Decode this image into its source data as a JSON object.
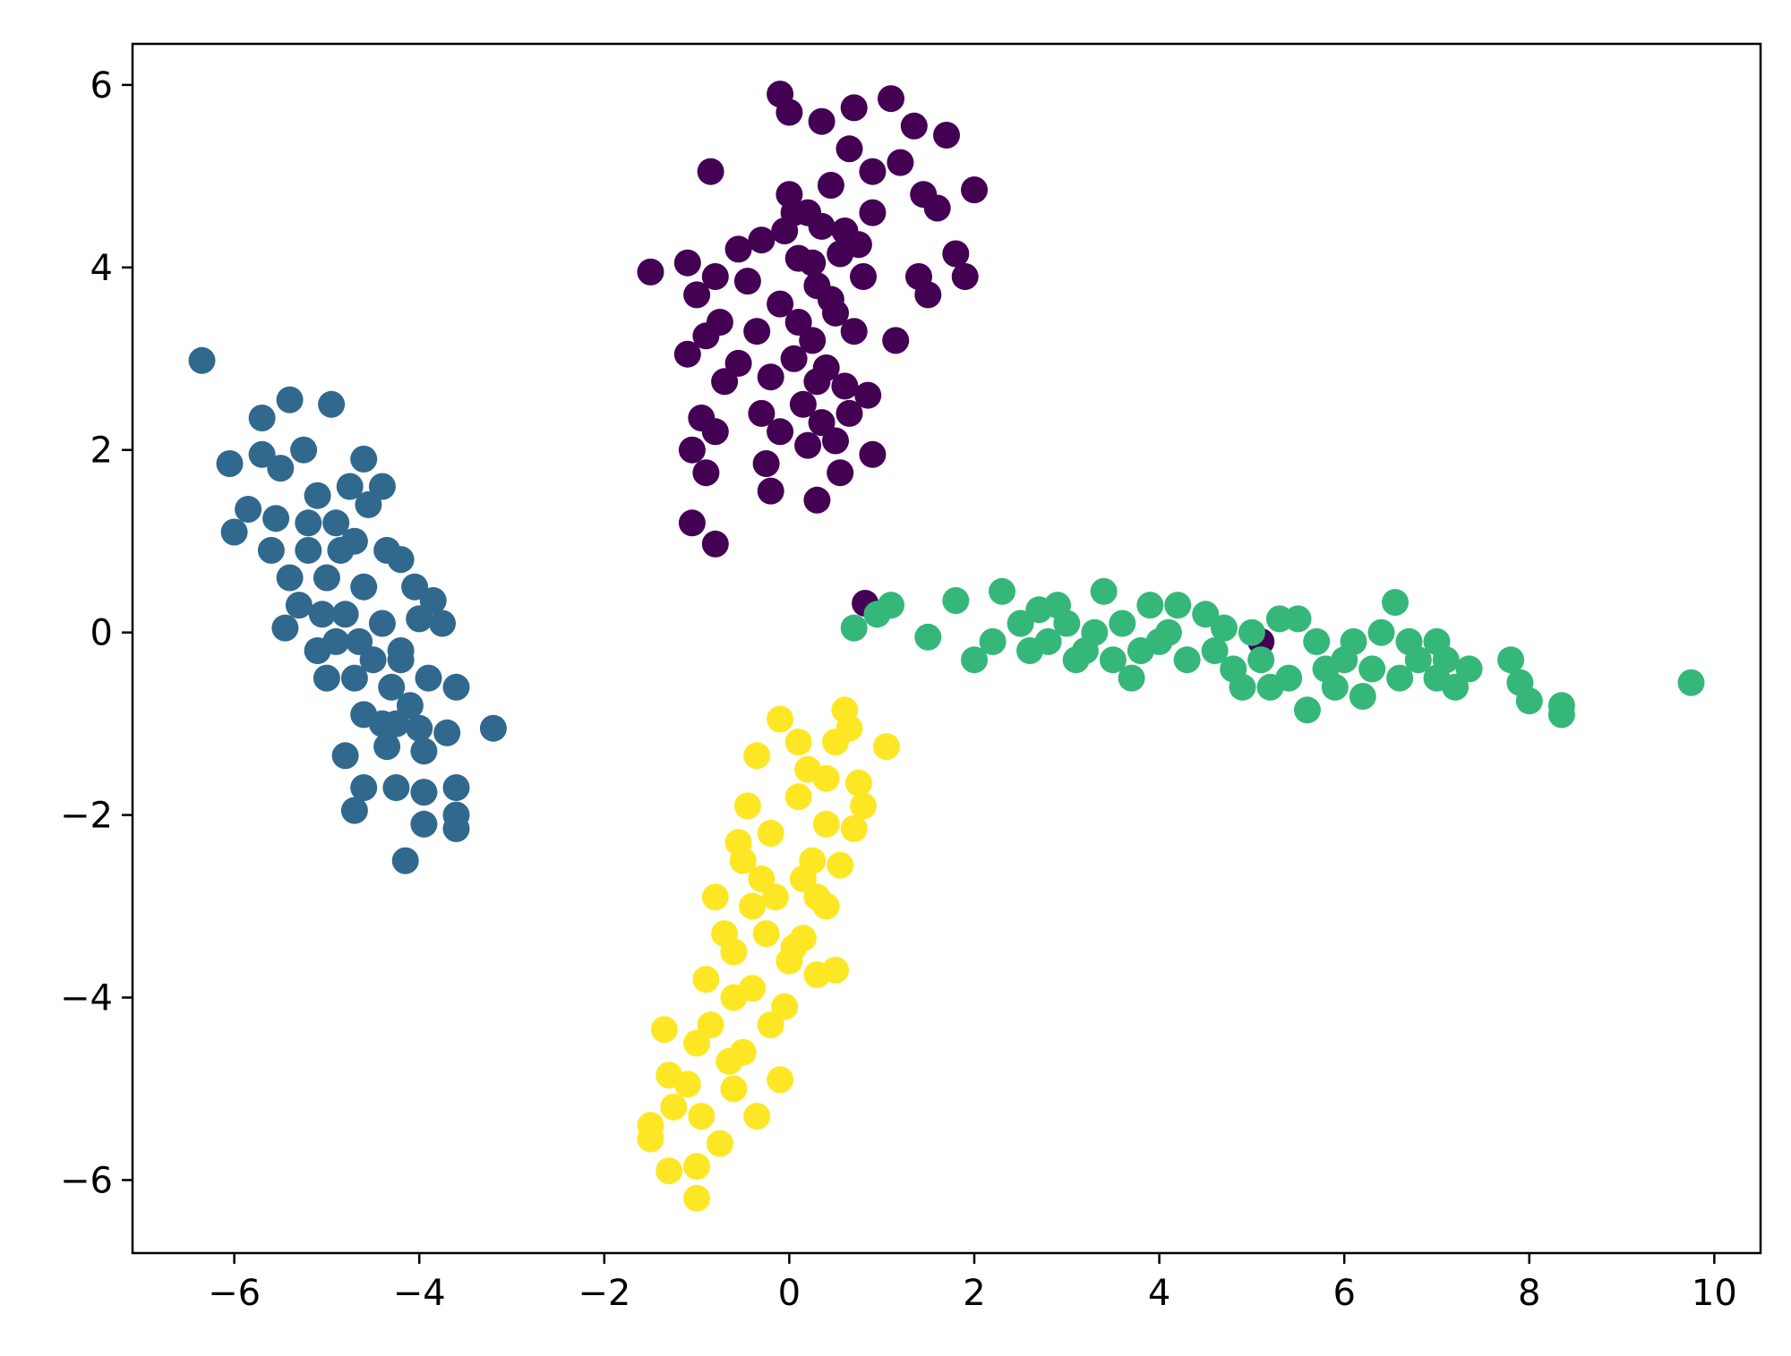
{
  "chart_data": {
    "type": "scatter",
    "title": "",
    "xlabel": "",
    "ylabel": "",
    "xlim": [
      -7.1,
      10.5
    ],
    "ylim": [
      -6.8,
      6.45
    ],
    "xticks": [
      -6,
      -4,
      -2,
      0,
      2,
      4,
      6,
      8,
      10
    ],
    "xtick_labels": [
      "−6",
      "−4",
      "−2",
      "0",
      "2",
      "4",
      "6",
      "8",
      "10"
    ],
    "yticks": [
      -6,
      -4,
      -2,
      0,
      2,
      4,
      6
    ],
    "ytick_labels": [
      "−6",
      "−4",
      "−2",
      "0",
      "2",
      "4",
      "6"
    ],
    "grid": false,
    "legend": "none",
    "series": [
      {
        "color": "#440154",
        "points": [
          [
            -0.1,
            5.9
          ],
          [
            0.0,
            5.7
          ],
          [
            0.35,
            5.6
          ],
          [
            0.7,
            5.75
          ],
          [
            1.1,
            5.85
          ],
          [
            1.35,
            5.55
          ],
          [
            1.7,
            5.45
          ],
          [
            -0.85,
            5.05
          ],
          [
            0.65,
            5.3
          ],
          [
            0.9,
            5.05
          ],
          [
            1.2,
            5.15
          ],
          [
            2.0,
            4.85
          ],
          [
            1.45,
            4.8
          ],
          [
            1.6,
            4.65
          ],
          [
            -1.5,
            3.95
          ],
          [
            -1.1,
            4.05
          ],
          [
            -0.8,
            3.9
          ],
          [
            -0.55,
            4.2
          ],
          [
            -0.3,
            4.3
          ],
          [
            1.8,
            4.15
          ],
          [
            1.9,
            3.9
          ],
          [
            1.4,
            3.9
          ],
          [
            1.5,
            3.7
          ],
          [
            -1.0,
            3.7
          ],
          [
            -0.75,
            3.4
          ],
          [
            -1.1,
            3.05
          ],
          [
            -0.9,
            3.25
          ],
          [
            1.15,
            3.2
          ],
          [
            -0.7,
            2.75
          ],
          [
            -0.95,
            2.35
          ],
          [
            -0.8,
            2.2
          ],
          [
            -1.05,
            2.0
          ],
          [
            -0.9,
            1.75
          ],
          [
            0.9,
            1.95
          ],
          [
            0.85,
            2.6
          ],
          [
            -0.25,
            1.85
          ],
          [
            -0.2,
            1.55
          ],
          [
            0.3,
            1.45
          ],
          [
            0.55,
            1.75
          ],
          [
            -1.05,
            1.2
          ],
          [
            -0.8,
            0.97
          ],
          [
            0.82,
            0.32
          ],
          [
            5.1,
            -0.1
          ],
          [
            0.0,
            4.8
          ],
          [
            0.2,
            4.6
          ],
          [
            0.45,
            4.9
          ],
          [
            0.6,
            4.4
          ],
          [
            0.1,
            4.1
          ],
          [
            0.3,
            3.8
          ],
          [
            -0.1,
            3.6
          ],
          [
            0.5,
            3.5
          ],
          [
            0.25,
            3.2
          ],
          [
            0.05,
            3.0
          ],
          [
            0.4,
            2.9
          ],
          [
            0.6,
            2.7
          ],
          [
            0.15,
            2.5
          ],
          [
            0.35,
            2.3
          ],
          [
            -0.2,
            2.8
          ],
          [
            -0.35,
            3.3
          ],
          [
            -0.3,
            2.4
          ],
          [
            0.7,
            3.3
          ],
          [
            0.8,
            3.9
          ],
          [
            0.55,
            4.15
          ],
          [
            -0.05,
            4.4
          ],
          [
            0.25,
            4.05
          ],
          [
            0.45,
            3.65
          ],
          [
            0.1,
            3.4
          ],
          [
            0.3,
            2.75
          ],
          [
            0.5,
            2.1
          ],
          [
            0.2,
            2.05
          ],
          [
            -0.1,
            2.2
          ],
          [
            0.9,
            4.6
          ],
          [
            -0.45,
            3.85
          ],
          [
            -0.55,
            2.95
          ],
          [
            0.65,
            2.4
          ],
          [
            0.05,
            4.6
          ],
          [
            0.35,
            4.45
          ],
          [
            0.75,
            4.25
          ]
        ]
      },
      {
        "color": "#31688e",
        "points": [
          [
            -6.35,
            2.98
          ],
          [
            -5.4,
            2.55
          ],
          [
            -4.95,
            2.5
          ],
          [
            -5.7,
            2.35
          ],
          [
            -5.25,
            2.0
          ],
          [
            -6.05,
            1.85
          ],
          [
            -5.7,
            1.95
          ],
          [
            -5.5,
            1.8
          ],
          [
            -4.6,
            1.9
          ],
          [
            -4.4,
            1.6
          ],
          [
            -5.85,
            1.35
          ],
          [
            -6.0,
            1.1
          ],
          [
            -5.55,
            1.25
          ],
          [
            -4.2,
            0.8
          ],
          [
            -4.05,
            0.5
          ],
          [
            -3.85,
            0.35
          ],
          [
            -3.75,
            0.1
          ],
          [
            -3.2,
            -1.05
          ],
          [
            -3.6,
            -0.6
          ],
          [
            -3.7,
            -1.1
          ],
          [
            -3.95,
            -1.3
          ],
          [
            -4.8,
            -1.35
          ],
          [
            -4.35,
            -1.25
          ],
          [
            -4.6,
            -1.7
          ],
          [
            -4.7,
            -1.95
          ],
          [
            -4.25,
            -1.7
          ],
          [
            -3.95,
            -1.75
          ],
          [
            -3.6,
            -1.7
          ],
          [
            -3.6,
            -2.0
          ],
          [
            -3.95,
            -2.1
          ],
          [
            -3.6,
            -2.15
          ],
          [
            -4.15,
            -2.5
          ],
          [
            -4.0,
            -1.05
          ],
          [
            -4.2,
            -0.3
          ],
          [
            -5.1,
            1.5
          ],
          [
            -4.9,
            1.2
          ],
          [
            -5.2,
            0.9
          ],
          [
            -4.7,
            1.0
          ],
          [
            -5.0,
            0.6
          ],
          [
            -4.6,
            0.5
          ],
          [
            -5.3,
            0.3
          ],
          [
            -4.8,
            0.2
          ],
          [
            -4.4,
            0.1
          ],
          [
            -4.9,
            -0.1
          ],
          [
            -4.5,
            -0.3
          ],
          [
            -5.1,
            -0.2
          ],
          [
            -4.7,
            -0.5
          ],
          [
            -4.3,
            -0.6
          ],
          [
            -4.1,
            -0.8
          ],
          [
            -4.6,
            -0.9
          ],
          [
            -4.4,
            -1.0
          ],
          [
            -5.4,
            0.6
          ],
          [
            -5.2,
            1.2
          ],
          [
            -4.55,
            1.4
          ],
          [
            -4.35,
            0.9
          ],
          [
            -5.45,
            0.05
          ],
          [
            -5.0,
            -0.5
          ],
          [
            -4.2,
            -0.2
          ],
          [
            -4.0,
            0.15
          ],
          [
            -4.75,
            1.6
          ],
          [
            -5.6,
            0.9
          ],
          [
            -4.25,
            -1.0
          ],
          [
            -3.9,
            -0.5
          ],
          [
            -4.85,
            0.9
          ],
          [
            -5.05,
            0.2
          ],
          [
            -4.65,
            -0.1
          ]
        ]
      },
      {
        "color": "#35b779",
        "points": [
          [
            0.7,
            0.05
          ],
          [
            1.1,
            0.3
          ],
          [
            0.95,
            0.2
          ],
          [
            1.5,
            -0.05
          ],
          [
            1.8,
            0.35
          ],
          [
            2.0,
            -0.3
          ],
          [
            2.3,
            0.45
          ],
          [
            2.5,
            0.1
          ],
          [
            2.7,
            0.25
          ],
          [
            2.6,
            -0.2
          ],
          [
            3.0,
            0.1
          ],
          [
            3.2,
            -0.2
          ],
          [
            3.4,
            0.45
          ],
          [
            3.6,
            0.1
          ],
          [
            3.7,
            -0.5
          ],
          [
            3.9,
            0.3
          ],
          [
            4.1,
            0.0
          ],
          [
            4.3,
            -0.3
          ],
          [
            4.5,
            0.2
          ],
          [
            4.7,
            0.05
          ],
          [
            4.9,
            -0.6
          ],
          [
            5.1,
            -0.3
          ],
          [
            5.3,
            0.15
          ],
          [
            5.5,
            0.15
          ],
          [
            5.6,
            -0.85
          ],
          [
            5.8,
            -0.4
          ],
          [
            6.0,
            -0.3
          ],
          [
            6.2,
            -0.7
          ],
          [
            6.4,
            0.0
          ],
          [
            6.55,
            0.33
          ],
          [
            6.6,
            -0.5
          ],
          [
            6.8,
            -0.3
          ],
          [
            7.0,
            -0.5
          ],
          [
            7.2,
            -0.6
          ],
          [
            7.35,
            -0.4
          ],
          [
            7.0,
            -0.1
          ],
          [
            7.8,
            -0.3
          ],
          [
            7.9,
            -0.55
          ],
          [
            8.0,
            -0.75
          ],
          [
            8.35,
            -0.8
          ],
          [
            8.35,
            -0.9
          ],
          [
            9.75,
            -0.55
          ],
          [
            2.2,
            -0.1
          ],
          [
            2.8,
            -0.1
          ],
          [
            3.3,
            0.0
          ],
          [
            3.5,
            -0.3
          ],
          [
            4.0,
            -0.1
          ],
          [
            4.2,
            0.3
          ],
          [
            4.6,
            -0.2
          ],
          [
            5.0,
            0.0
          ],
          [
            5.4,
            -0.5
          ],
          [
            5.7,
            -0.1
          ],
          [
            6.1,
            -0.1
          ],
          [
            6.3,
            -0.4
          ],
          [
            5.2,
            -0.6
          ],
          [
            4.8,
            -0.4
          ],
          [
            3.8,
            -0.2
          ],
          [
            3.1,
            -0.3
          ],
          [
            2.9,
            0.3
          ],
          [
            5.9,
            -0.6
          ],
          [
            6.7,
            -0.1
          ],
          [
            7.1,
            -0.3
          ]
        ]
      },
      {
        "color": "#fde725",
        "points": [
          [
            -0.1,
            -0.95
          ],
          [
            0.6,
            -0.85
          ],
          [
            0.65,
            -1.05
          ],
          [
            1.05,
            -1.25
          ],
          [
            0.5,
            -1.2
          ],
          [
            -0.35,
            -1.35
          ],
          [
            0.75,
            -1.65
          ],
          [
            0.8,
            -1.9
          ],
          [
            0.7,
            -2.15
          ],
          [
            0.4,
            -2.1
          ],
          [
            0.55,
            -2.55
          ],
          [
            0.3,
            -2.9
          ],
          [
            0.4,
            -3.0
          ],
          [
            0.15,
            -3.35
          ],
          [
            0.5,
            -3.7
          ],
          [
            0.3,
            -3.75
          ],
          [
            0.05,
            -3.45
          ],
          [
            -0.05,
            -4.1
          ],
          [
            -1.35,
            -4.35
          ],
          [
            -1.3,
            -4.85
          ],
          [
            -1.1,
            -4.95
          ],
          [
            -1.25,
            -5.2
          ],
          [
            -1.5,
            -5.4
          ],
          [
            -1.5,
            -5.55
          ],
          [
            -1.3,
            -5.9
          ],
          [
            -1.0,
            -5.85
          ],
          [
            -1.0,
            -6.2
          ],
          [
            -0.35,
            -5.3
          ],
          [
            -0.1,
            -4.9
          ],
          [
            -0.5,
            -4.6
          ],
          [
            -0.85,
            -4.3
          ],
          [
            -0.6,
            -4.0
          ],
          [
            -0.9,
            -3.8
          ],
          [
            -0.7,
            -3.3
          ],
          [
            -0.4,
            -3.0
          ],
          [
            -0.8,
            -2.9
          ],
          [
            -0.5,
            -2.5
          ],
          [
            -0.2,
            -2.2
          ],
          [
            0.1,
            -1.8
          ],
          [
            0.2,
            -1.5
          ],
          [
            -0.3,
            -2.7
          ],
          [
            -0.6,
            -3.5
          ],
          [
            -1.0,
            -4.5
          ],
          [
            -0.75,
            -5.6
          ],
          [
            -0.6,
            -5.0
          ],
          [
            -0.2,
            -4.3
          ],
          [
            0.0,
            -3.6
          ],
          [
            0.25,
            -2.5
          ],
          [
            0.4,
            -1.6
          ],
          [
            -0.45,
            -1.9
          ],
          [
            -0.15,
            -2.9
          ],
          [
            -0.4,
            -3.9
          ],
          [
            -0.65,
            -4.7
          ],
          [
            -0.95,
            -5.3
          ],
          [
            0.1,
            -1.2
          ],
          [
            -0.55,
            -2.3
          ],
          [
            -0.25,
            -3.3
          ],
          [
            0.15,
            -2.7
          ]
        ]
      }
    ]
  }
}
